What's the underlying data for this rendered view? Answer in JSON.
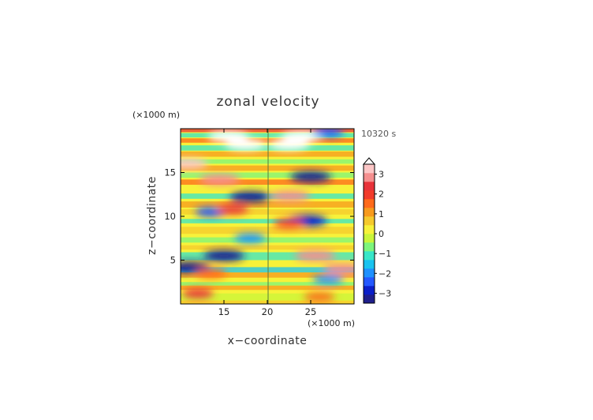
{
  "chart_data": {
    "type": "heatmap",
    "title": "zonal velocity",
    "xlabel": "x−coordinate",
    "ylabel": "z−coordinate",
    "x_unit": "(×1000 m)",
    "y_unit": "(×1000 m)",
    "time_label": "10320 s",
    "xlim": [
      10,
      30
    ],
    "ylim": [
      0,
      20
    ],
    "x_ticks": [
      15,
      20,
      25
    ],
    "y_ticks": [
      5,
      10,
      15
    ],
    "colorbar": {
      "min": -3.5,
      "max": 3.5,
      "extend": "max",
      "ticks": [
        3,
        2,
        1,
        0,
        -1,
        -2,
        -3
      ],
      "tick_labels": [
        "3",
        "2",
        "1",
        "0",
        "−1",
        "−2",
        "−3"
      ],
      "colors": [
        "#1f1f8c",
        "#0b1fc9",
        "#2458ff",
        "#1e90ff",
        "#19c3f0",
        "#37e6c8",
        "#7cf57c",
        "#c9f53a",
        "#f7f23a",
        "#f5c92c",
        "#f79a1c",
        "#ff6a1a",
        "#f23b2b",
        "#e8323a",
        "#f58f8f",
        "#fcc6c6"
      ],
      "over_color": "#ffffff"
    },
    "features": [
      {
        "x": 15.5,
        "z": 19.1,
        "value": 4.0
      },
      {
        "x": 24.0,
        "z": 19.1,
        "value": 4.0
      },
      {
        "x": 17.5,
        "z": 18.2,
        "value": 3.7
      },
      {
        "x": 22.5,
        "z": 18.2,
        "value": 3.7
      },
      {
        "x": 27.0,
        "z": 19.6,
        "value": -2.5
      },
      {
        "x": 10.8,
        "z": 16.0,
        "value": 3.2
      },
      {
        "x": 14.5,
        "z": 14.2,
        "value": 2.8
      },
      {
        "x": 25.0,
        "z": 14.5,
        "value": -3.2
      },
      {
        "x": 18.0,
        "z": 12.2,
        "value": -3.2
      },
      {
        "x": 22.6,
        "z": 12.3,
        "value": 3.0
      },
      {
        "x": 13.5,
        "z": 10.5,
        "value": -2.3
      },
      {
        "x": 16.0,
        "z": 10.8,
        "value": 2.2
      },
      {
        "x": 24.5,
        "z": 9.5,
        "value": -3.0
      },
      {
        "x": 22.5,
        "z": 9.2,
        "value": 1.8
      },
      {
        "x": 18.0,
        "z": 7.5,
        "value": -2.0
      },
      {
        "x": 15.0,
        "z": 5.5,
        "value": -3.2
      },
      {
        "x": 25.5,
        "z": 5.5,
        "value": 2.8
      },
      {
        "x": 11.0,
        "z": 4.2,
        "value": -3.5
      },
      {
        "x": 28.8,
        "z": 4.0,
        "value": 3.0
      },
      {
        "x": 13.5,
        "z": 3.5,
        "value": 1.6
      },
      {
        "x": 27.0,
        "z": 2.8,
        "value": -2.0
      },
      {
        "x": 12.0,
        "z": 1.2,
        "value": 2.2
      },
      {
        "x": 26.0,
        "z": 0.8,
        "value": 1.5
      }
    ]
  }
}
